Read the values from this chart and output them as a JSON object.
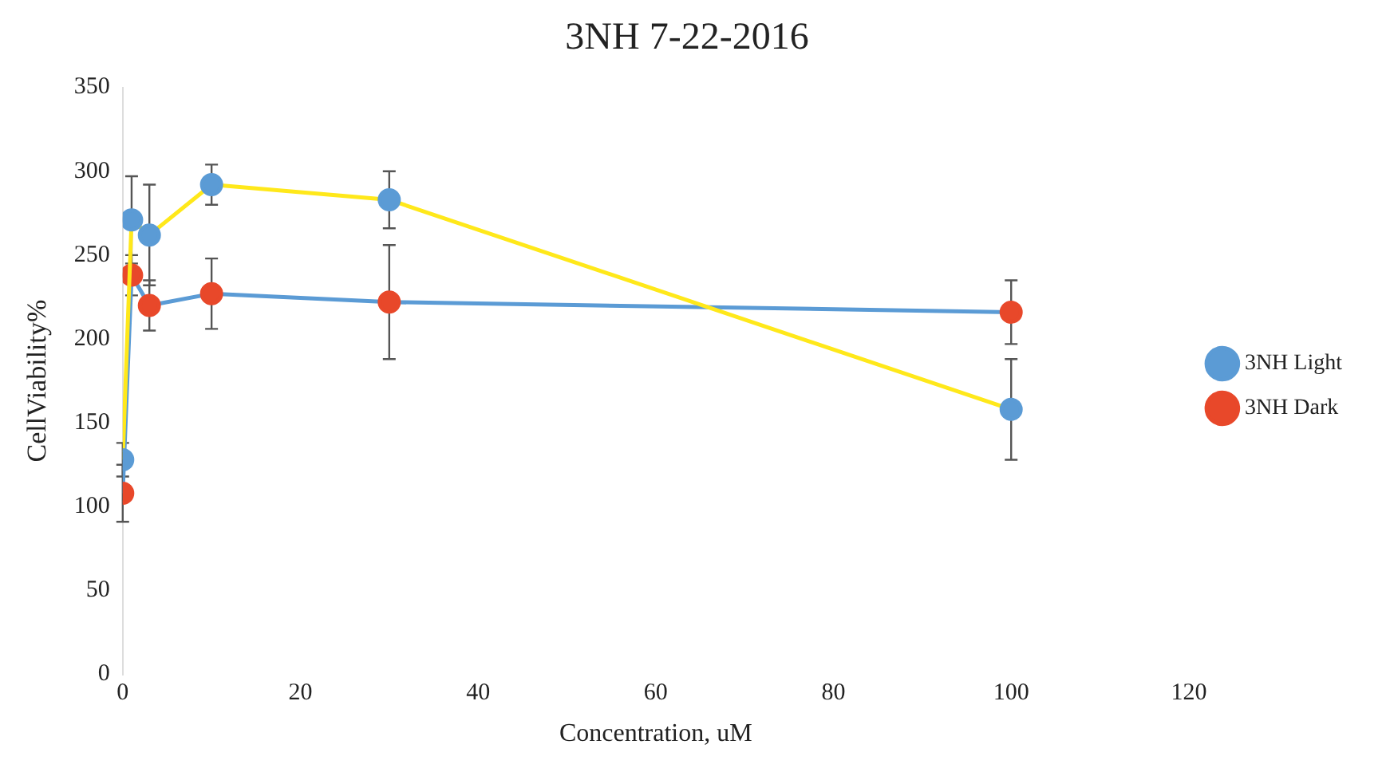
{
  "chart_data": {
    "type": "line",
    "title": "3NH 7-22-2016",
    "xlabel": "Concentration, uM",
    "ylabel": "CellViability%",
    "x": [
      0,
      1,
      3,
      10,
      30,
      100
    ],
    "series": [
      {
        "name": "3NH Light",
        "color": "#ffe81a",
        "colors": [
          "#5b9bd5",
          "#5b9bd5",
          "#5b9bd5",
          "#5b9bd5",
          "#5b9bd5",
          "#5b9bd5"
        ],
        "values": [
          128,
          271,
          262,
          292,
          283,
          158
        ],
        "errors": [
          10,
          26,
          30,
          12,
          17,
          30
        ]
      },
      {
        "name": "3NH Dark",
        "color": "#5b9bd5",
        "colors": [
          "#e8482a",
          "#e8482a",
          "#e8482a",
          "#e8482a",
          "#e8482a",
          "#e8482a"
        ],
        "values": [
          108,
          238,
          220,
          227,
          222,
          216
        ],
        "errors": [
          17,
          12,
          15,
          21,
          34,
          19
        ]
      }
    ],
    "xlim": [
      0,
      120
    ],
    "xticks": [
      0,
      20,
      40,
      60,
      80,
      100,
      120
    ],
    "ylim": [
      0,
      350
    ],
    "yticks": [
      0,
      50,
      100,
      150,
      200,
      250,
      300,
      350
    ],
    "grid": false,
    "legend": "right",
    "marker": "circle",
    "line_style": "solid"
  }
}
